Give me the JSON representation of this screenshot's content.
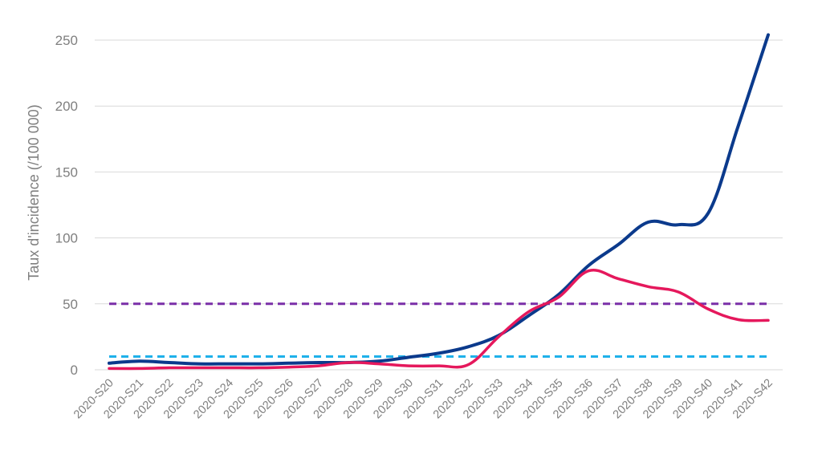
{
  "chart_data": {
    "type": "line",
    "ylabel": "Taux d'incidence (/100 000)",
    "ylim": [
      0,
      250
    ],
    "yticks": [
      0,
      50,
      100,
      150,
      200,
      250
    ],
    "grid": true,
    "categories": [
      "2020-S20",
      "2020-S21",
      "2020-S22",
      "2020-S23",
      "2020-S24",
      "2020-S25",
      "2020-S26",
      "2020-S27",
      "2020-S28",
      "2020-S29",
      "2020-S30",
      "2020-S31",
      "2020-S32",
      "2020-S33",
      "2020-S34",
      "2020-S35",
      "2020-S36",
      "2020-S37",
      "2020-S38",
      "2020-S39",
      "2020-S40",
      "2020-S41",
      "2020-S42"
    ],
    "series": [
      {
        "color": "#0b3a8c",
        "style": "solid",
        "width": 4,
        "values": [
          5,
          6.5,
          5.5,
          4.5,
          4.5,
          4.5,
          5,
          5.5,
          5.5,
          6.5,
          9.5,
          12.5,
          17.5,
          26,
          41,
          57,
          79,
          95,
          112,
          110,
          119,
          185,
          254
        ]
      },
      {
        "color": "#e5185c",
        "style": "solid",
        "width": 3.5,
        "values": [
          1,
          1,
          1.5,
          1.5,
          1.5,
          1.5,
          2,
          3,
          5.5,
          4.5,
          3,
          3,
          4,
          25,
          44,
          55,
          75,
          69,
          63,
          59,
          46,
          38,
          37.5
        ]
      },
      {
        "color": "#7a2fa8",
        "style": "dashed",
        "width": 3,
        "values": [
          50,
          50,
          50,
          50,
          50,
          50,
          50,
          50,
          50,
          50,
          50,
          50,
          50,
          50,
          50,
          50,
          50,
          50,
          50,
          50,
          50,
          50,
          50
        ]
      },
      {
        "color": "#1fb1ea",
        "style": "dashed",
        "width": 3,
        "values": [
          10,
          10,
          10,
          10,
          10,
          10,
          10,
          10,
          10,
          10,
          10,
          10,
          10,
          10,
          10,
          10,
          10,
          10,
          10,
          10,
          10,
          10,
          10
        ]
      }
    ]
  }
}
